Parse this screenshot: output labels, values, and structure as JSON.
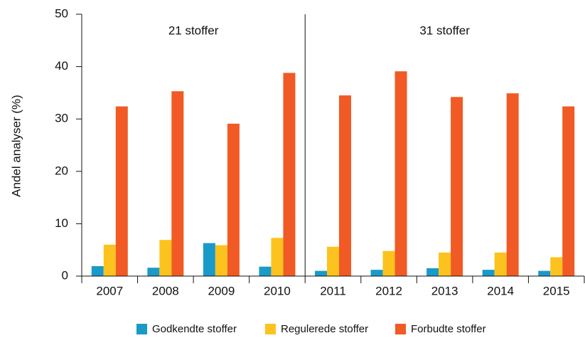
{
  "chart_data": {
    "type": "bar",
    "y_label": "Andel analyser (%)",
    "categories": [
      "2007",
      "2008",
      "2009",
      "2010",
      "2011",
      "2012",
      "2013",
      "2014",
      "2015"
    ],
    "series": [
      {
        "name": "Godkendte stoffer",
        "color": "#1a9ac9",
        "values": [
          1.9,
          1.6,
          6.3,
          1.8,
          1.0,
          1.2,
          1.5,
          1.2,
          1.0
        ]
      },
      {
        "name": "Regulerede stoffer",
        "color": "#fcc31e",
        "values": [
          6.0,
          6.9,
          5.9,
          7.3,
          5.6,
          4.8,
          4.5,
          4.5,
          3.6
        ]
      },
      {
        "name": "Forbudte stoffer",
        "color": "#f15a24",
        "values": [
          32.4,
          35.3,
          29.1,
          38.8,
          34.5,
          39.1,
          34.2,
          34.9,
          32.4
        ]
      }
    ],
    "annotations": [
      "21 stoffer",
      "31 stoffer"
    ],
    "ylim": [
      0,
      50
    ],
    "yticks": [
      0,
      10,
      20,
      30,
      40,
      50
    ]
  }
}
